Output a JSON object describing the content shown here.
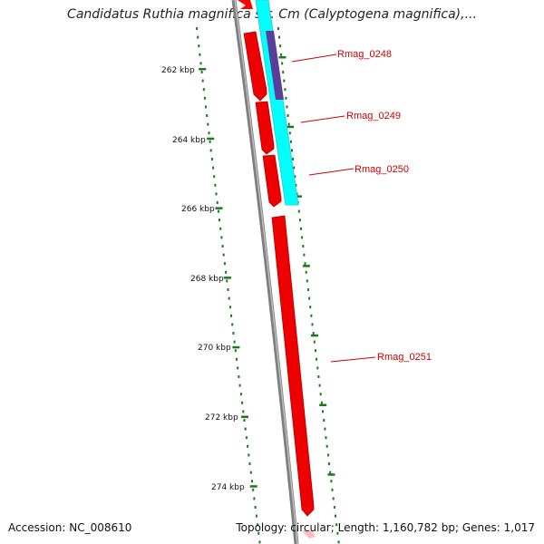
{
  "title": "Candidatus Ruthia magnifica str. Cm (Calyptogena magnifica),...",
  "accession": "Accession: NC_008610",
  "topology_text": "Topology: circular;",
  "length_text": "Length: 1,160,782 bp;",
  "genes_text": "Genes: 1,017",
  "scale_labels": [
    "262 kbp",
    "264 kbp",
    "266 kbp",
    "268 kbp",
    "270 kbp",
    "272 kbp",
    "274 kbp"
  ],
  "gene_labels": [
    "Rmag_0248",
    "Rmag_0249",
    "Rmag_0250",
    "Rmag_0251"
  ],
  "colors": {
    "backbone": "#808080",
    "forward_gene": "#ff0000",
    "highlight": "#00ffff",
    "overlap": "#5a3f9a",
    "ticks": "#1a7a1a",
    "label_text": "#cc0000",
    "leader": "#cc0000"
  }
}
